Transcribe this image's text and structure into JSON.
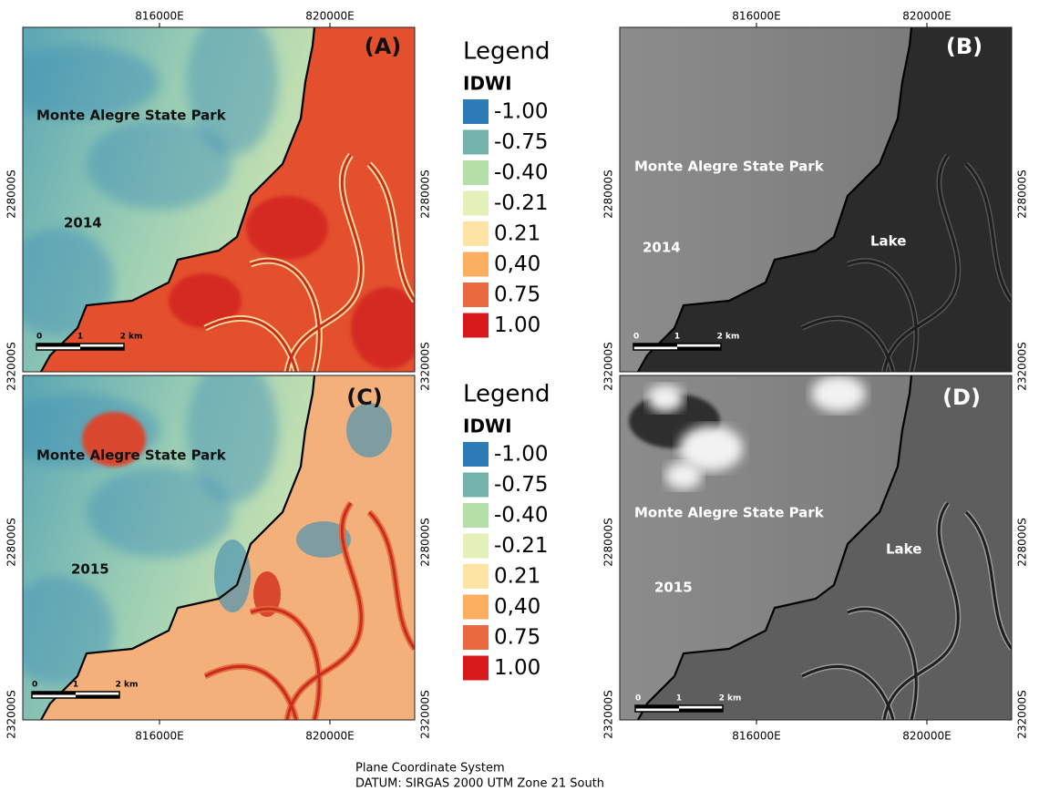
{
  "panels": [
    {
      "label": "(A)",
      "park": "Monte Alegre State Park",
      "year": "2014",
      "scale": [
        "0",
        "1",
        "2 km"
      ],
      "eastings": [
        "816000E",
        "820000E"
      ],
      "northings_left": [
        "228000S",
        "232000S"
      ],
      "northings_right": [
        "228000S",
        "232000S"
      ]
    },
    {
      "label": "(B)",
      "park": "Monte Alegre State Park",
      "year": "2014",
      "lake": "Lake",
      "scale": [
        "0",
        "1",
        "2 km"
      ],
      "eastings": [
        "816000E",
        "820000E"
      ],
      "northings_left": [
        "228000S",
        "232000S"
      ],
      "northings_right": [
        "228000S",
        "232000S"
      ]
    },
    {
      "label": "(C)",
      "park": "Monte Alegre State Park",
      "year": "2015",
      "scale": [
        "0",
        "1",
        "2 km"
      ],
      "eastings": [
        "816000E",
        "820000E"
      ],
      "northings_left": [
        "228000S",
        "232000S"
      ],
      "northings_right": [
        "228000S",
        "232000S"
      ]
    },
    {
      "label": "(D)",
      "park": "Monte Alegre State Park",
      "year": "2015",
      "lake": "Lake",
      "scale": [
        "0",
        "1",
        "2 km"
      ],
      "eastings": [
        "816000E",
        "820000E"
      ],
      "northings_left": [
        "228000S",
        "232000S"
      ],
      "northings_right": [
        "228000S",
        "232000S"
      ]
    }
  ],
  "legends": [
    {
      "title": "Legend",
      "index": "IDWI",
      "items": [
        {
          "label": "-1.00",
          "color": "#2c7bb6"
        },
        {
          "label": "-0.75",
          "color": "#74b3ac"
        },
        {
          "label": "-0.40",
          "color": "#b4dfa6"
        },
        {
          "label": "-0.21",
          "color": "#e3f1b9"
        },
        {
          "label": "0.21",
          "color": "#fde4a4"
        },
        {
          "label": "0,40",
          "color": "#fcae61"
        },
        {
          "label": "0.75",
          "color": "#ea6a40"
        },
        {
          "label": "1.00",
          "color": "#d7191c"
        }
      ]
    },
    {
      "title": "Legend",
      "index": "IDWI",
      "items": [
        {
          "label": "-1.00",
          "color": "#2c7bb6"
        },
        {
          "label": "-0.75",
          "color": "#74b3ac"
        },
        {
          "label": "-0.40",
          "color": "#b4dfa6"
        },
        {
          "label": "-0.21",
          "color": "#e3f1b9"
        },
        {
          "label": "0.21",
          "color": "#fde4a4"
        },
        {
          "label": "0,40",
          "color": "#fcae61"
        },
        {
          "label": "0.75",
          "color": "#ea6a40"
        },
        {
          "label": "1.00",
          "color": "#d7191c"
        }
      ]
    }
  ],
  "footer": [
    "Plane Coordinate System",
    "DATUM: SIRGAS 2000 UTM Zone 21 South"
  ]
}
